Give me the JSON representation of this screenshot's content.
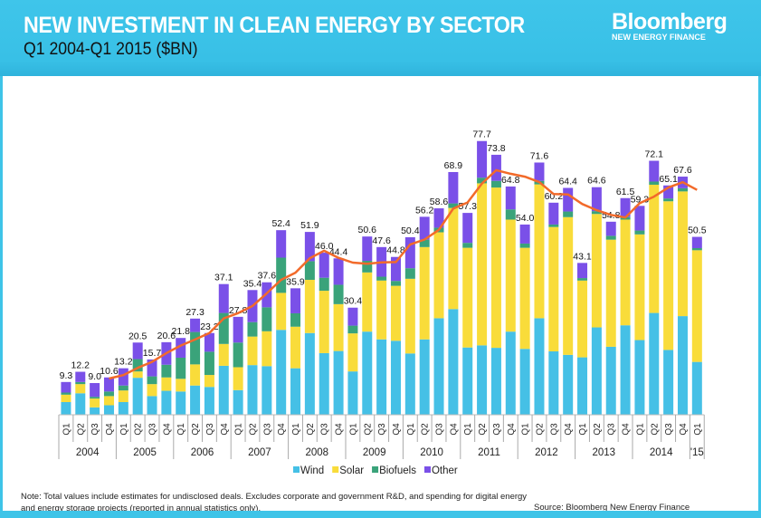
{
  "header": {
    "title": "NEW INVESTMENT IN CLEAN ENERGY BY SECTOR",
    "subtitle": "Q1 2004-Q1 2015 ($BN)",
    "logo_main": "Bloomberg",
    "logo_sub": "NEW ENERGY FINANCE"
  },
  "footer": {
    "note": "Note: Total values include estimates for undisclosed deals. Excludes corporate and government R&D, and spending for digital energy and energy storage projects (reported in annual statistics only).",
    "source": "Source: Bloomberg New Energy Finance"
  },
  "chart_data": {
    "type": "bar",
    "stacked": true,
    "title": "NEW INVESTMENT IN CLEAN ENERGY BY SECTOR",
    "subtitle": "Q1 2004-Q1 2015 ($BN)",
    "xlabel": "",
    "ylabel": "",
    "ylim": [
      0,
      80
    ],
    "grid": false,
    "legend_position": "bottom",
    "years": [
      "2004",
      "2005",
      "2006",
      "2007",
      "2008",
      "2009",
      "2010",
      "2011",
      "2012",
      "2013",
      "2014",
      "'15"
    ],
    "categories": [
      "Q1",
      "Q2",
      "Q3",
      "Q4",
      "Q1",
      "Q2",
      "Q3",
      "Q4",
      "Q1",
      "Q2",
      "Q3",
      "Q4",
      "Q1",
      "Q2",
      "Q3",
      "Q4",
      "Q1",
      "Q2",
      "Q3",
      "Q4",
      "Q1",
      "Q2",
      "Q3",
      "Q4",
      "Q1",
      "Q2",
      "Q3",
      "Q4",
      "Q1",
      "Q2",
      "Q3",
      "Q4",
      "Q1",
      "Q2",
      "Q3",
      "Q4",
      "Q1",
      "Q2",
      "Q3",
      "Q4",
      "Q1",
      "Q2",
      "Q3",
      "Q4",
      "Q1"
    ],
    "totals": [
      9.3,
      12.2,
      9.0,
      10.6,
      13.2,
      20.5,
      15.7,
      20.6,
      21.8,
      27.3,
      23.2,
      37.1,
      27.8,
      35.4,
      37.6,
      52.4,
      35.9,
      51.9,
      46.0,
      44.4,
      30.4,
      50.6,
      47.6,
      44.8,
      50.4,
      56.2,
      58.6,
      68.9,
      57.3,
      77.7,
      73.8,
      64.8,
      54.0,
      71.6,
      60.2,
      64.4,
      43.1,
      64.6,
      54.8,
      61.5,
      59.3,
      72.1,
      65.1,
      67.6,
      50.5
    ],
    "series": [
      {
        "name": "Wind",
        "color": "#45c0e6",
        "values": [
          3.6,
          6.1,
          2.1,
          2.7,
          3.6,
          10.5,
          5.3,
          6.8,
          6.6,
          8.3,
          7.9,
          13.9,
          7.0,
          14.1,
          13.8,
          24.1,
          13.2,
          23.2,
          17.5,
          18.1,
          12.3,
          23.6,
          21.4,
          21.0,
          17.4,
          21.4,
          27.4,
          30.0,
          19.1,
          19.7,
          19.0,
          23.6,
          18.7,
          27.4,
          18.0,
          17.0,
          16.3,
          24.8,
          19.3,
          25.4,
          21.2,
          28.9,
          18.4,
          28.0,
          15.0
        ]
      },
      {
        "name": "Solar",
        "color": "#f9dc3a",
        "values": [
          2.1,
          2.6,
          2.5,
          2.6,
          3.3,
          1.8,
          3.4,
          3.8,
          3.6,
          6.0,
          3.4,
          6.2,
          6.5,
          8.1,
          9.9,
          10.5,
          11.8,
          15.1,
          17.7,
          13.3,
          10.8,
          16.8,
          16.7,
          15.6,
          21.2,
          26.2,
          24.4,
          28.7,
          28.3,
          46.0,
          45.5,
          31.8,
          28.7,
          38.0,
          35.3,
          39.1,
          21.8,
          32.2,
          30.4,
          30.0,
          30.0,
          36.4,
          42.2,
          35.4,
          31.7
        ]
      },
      {
        "name": "Biofuels",
        "color": "#3aa37a",
        "values": [
          0.6,
          0.6,
          0.5,
          1.3,
          1.4,
          3.5,
          2.2,
          3.6,
          6.0,
          9.2,
          6.6,
          8.8,
          7.0,
          4.1,
          6.8,
          10.0,
          3.8,
          5.3,
          3.7,
          5.5,
          2.2,
          3.3,
          1.1,
          1.4,
          3.0,
          2.1,
          1.3,
          1.3,
          1.4,
          1.6,
          1.9,
          2.9,
          1.2,
          1.0,
          0.7,
          1.6,
          0.7,
          0.8,
          1.1,
          0.7,
          1.1,
          0.9,
          0.8,
          0.9,
          0.6
        ]
      },
      {
        "name": "Other",
        "color": "#7a50e8",
        "values": [
          3.0,
          2.9,
          3.9,
          4.0,
          4.9,
          4.7,
          4.8,
          6.4,
          5.6,
          3.8,
          5.3,
          8.2,
          7.3,
          9.1,
          7.1,
          7.8,
          7.1,
          8.3,
          7.1,
          7.5,
          5.1,
          6.9,
          8.4,
          6.8,
          8.8,
          6.5,
          5.5,
          8.9,
          8.5,
          10.4,
          7.4,
          6.5,
          5.4,
          5.2,
          6.2,
          6.7,
          4.3,
          6.8,
          4.0,
          5.4,
          7.0,
          5.9,
          3.7,
          3.3,
          3.2
        ]
      }
    ],
    "trend_line": {
      "type": "4-quarter rolling average of totals",
      "color": "#f26a2a"
    }
  }
}
